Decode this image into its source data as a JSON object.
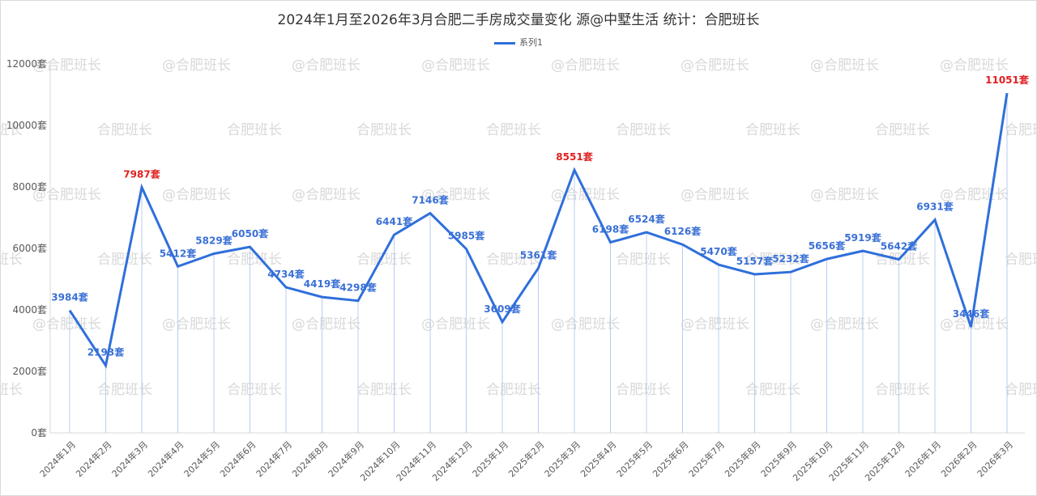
{
  "title": "2024年1月至2026年3月合肥二手房成交量变化   源@中墅生活  统计：合肥班长",
  "legend": {
    "label": "系列1",
    "color": "#2f6fdb"
  },
  "watermark": "@合肥班长",
  "colors": {
    "line": "#2f6fdb",
    "label": "#3a70d6",
    "highlight": "#e02020",
    "drop": "#b8cdf2"
  },
  "chart_data": {
    "type": "line",
    "title": "2024年1月至2026年3月合肥二手房成交量变化   源@中墅生活  统计：合肥班长",
    "xlabel": "",
    "ylabel": "",
    "unit": "套",
    "ylim": [
      0,
      12000
    ],
    "yticks": [
      0,
      2000,
      4000,
      6000,
      8000,
      10000,
      12000
    ],
    "ytick_labels": [
      "0套",
      "2000套",
      "4000套",
      "6000套",
      "8000套",
      "10000套",
      "12000套"
    ],
    "grid": false,
    "legend_position": "top",
    "categories": [
      "2024年1月",
      "2024年2月",
      "2024年3月",
      "2024年4月",
      "2024年5月",
      "2024年6月",
      "2024年7月",
      "2024年8月",
      "2024年9月",
      "2024年10月",
      "2024年11月",
      "2024年12月",
      "2025年1月",
      "2025年2月",
      "2025年3月",
      "2025年4月",
      "2025年5月",
      "2025年6月",
      "2025年7月",
      "2025年8月",
      "2025年9月",
      "2025年10月",
      "2025年11月",
      "2025年12月",
      "2026年1月",
      "2026年2月",
      "2026年3月"
    ],
    "series": [
      {
        "name": "系列1",
        "values": [
          3984,
          2193,
          7987,
          5412,
          5829,
          6050,
          4734,
          4419,
          4298,
          6441,
          7146,
          5985,
          3609,
          5361,
          8551,
          6198,
          6524,
          6126,
          5470,
          5157,
          5232,
          5656,
          5919,
          5642,
          6931,
          3446,
          11051
        ]
      }
    ],
    "highlighted": [
      "2024年3月",
      "2025年3月",
      "2026年3月"
    ]
  }
}
